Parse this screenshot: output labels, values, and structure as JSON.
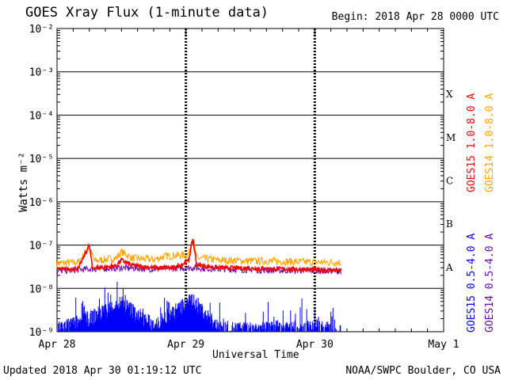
{
  "header": {
    "title": "GOES Xray Flux (1-minute data)",
    "begin": "Begin:  2018 Apr 28 0000 UTC"
  },
  "footer": {
    "updated": "Updated 2018 Apr 30 01:19:12 UTC",
    "source": "NOAA/SWPC Boulder, CO USA"
  },
  "chart_data": {
    "type": "line",
    "title": "GOES Xray Flux (1-minute data)",
    "xlabel": "Universal Time",
    "ylabel": "Watts m⁻²",
    "yscale": "log",
    "ylim": [
      1e-09,
      0.01
    ],
    "y_ticks": [
      "10⁻⁹",
      "10⁻⁸",
      "10⁻⁷",
      "10⁻⁶",
      "10⁻⁵",
      "10⁻⁴",
      "10⁻³",
      "10⁻²"
    ],
    "x_ticks": [
      "Apr 28",
      "Apr 29",
      "Apr 30",
      "May 1"
    ],
    "xlim_hours": [
      0,
      72
    ],
    "flare_classes": [
      "A",
      "B",
      "C",
      "M",
      "X"
    ],
    "grid": true,
    "colors": {
      "goes15_long": "#ff0000",
      "goes14_long": "#ffa500",
      "goes15_short": "#0000ff",
      "goes14_short": "#6a0dad"
    },
    "series": [
      {
        "name": "GOES15 1.0-8.0 A",
        "color": "#ff0000",
        "points": [
          [
            0,
            2.7e-08
          ],
          [
            4,
            2.9e-08
          ],
          [
            6,
            1e-07
          ],
          [
            6.6,
            3e-08
          ],
          [
            8,
            3e-08
          ],
          [
            11,
            3.3e-08
          ],
          [
            12,
            4.5e-08
          ],
          [
            14,
            3.4e-08
          ],
          [
            18,
            3e-08
          ],
          [
            22,
            3e-08
          ],
          [
            24.5,
            4.3e-08
          ],
          [
            25.3,
            1.4e-07
          ],
          [
            26,
            3.5e-08
          ],
          [
            30,
            3e-08
          ],
          [
            36,
            2.9e-08
          ],
          [
            42,
            2.8e-08
          ],
          [
            48,
            2.7e-08
          ],
          [
            53,
            2.6e-08
          ]
        ]
      },
      {
        "name": "GOES14 1.0-8.0 A",
        "color": "#ffa500",
        "points": [
          [
            0,
            3.8e-08
          ],
          [
            4,
            4e-08
          ],
          [
            6,
            9e-08
          ],
          [
            7,
            4.3e-08
          ],
          [
            11,
            5e-08
          ],
          [
            12,
            7e-08
          ],
          [
            14,
            5e-08
          ],
          [
            18,
            4.6e-08
          ],
          [
            20,
            5.5e-08
          ],
          [
            24.5,
            6e-08
          ],
          [
            25.3,
            1.6e-07
          ],
          [
            26,
            5e-08
          ],
          [
            30,
            4.5e-08
          ],
          [
            36,
            4.3e-08
          ],
          [
            42,
            4.2e-08
          ],
          [
            48,
            4e-08
          ],
          [
            53,
            4e-08
          ]
        ]
      },
      {
        "name": "GOES15 0.5-4.0 A",
        "color": "#0000ff",
        "points": [
          [
            0,
            1.2e-09
          ],
          [
            6,
            2.2e-09
          ],
          [
            12,
            5e-09
          ],
          [
            18,
            1.5e-09
          ],
          [
            25.3,
            6e-09
          ],
          [
            30,
            1.3e-09
          ],
          [
            36,
            1.2e-09
          ],
          [
            48,
            1.5e-09
          ],
          [
            53,
            1e-09
          ]
        ]
      },
      {
        "name": "GOES14 0.5-4.0 A",
        "color": "#6a0dad",
        "points": [
          [
            0,
            2.5e-08
          ],
          [
            6,
            2.8e-08
          ],
          [
            12,
            3e-08
          ],
          [
            18,
            2.8e-08
          ],
          [
            25,
            3e-08
          ],
          [
            30,
            2.8e-08
          ],
          [
            36,
            2.7e-08
          ],
          [
            42,
            2.6e-08
          ],
          [
            48,
            2.6e-08
          ],
          [
            53,
            2.5e-08
          ]
        ]
      }
    ]
  }
}
